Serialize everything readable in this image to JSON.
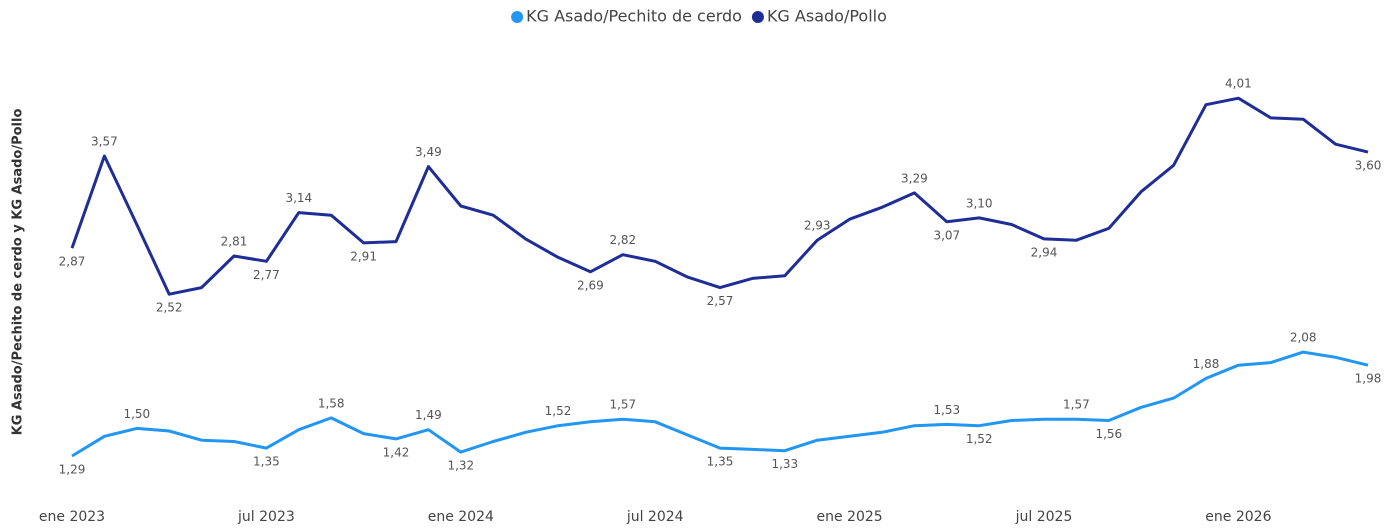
{
  "chart_data": {
    "type": "line",
    "y_axis_label": "KG Asado/Pechito de cerdo y KG Asado/Pollo",
    "x": [
      "2023-01",
      "2023-02",
      "2023-03",
      "2023-04",
      "2023-05",
      "2023-06",
      "2023-07",
      "2023-08",
      "2023-09",
      "2023-10",
      "2023-11",
      "2023-12",
      "2024-01",
      "2024-02",
      "2024-03",
      "2024-04",
      "2024-05",
      "2024-06",
      "2024-07",
      "2024-08",
      "2024-09",
      "2024-10",
      "2024-11",
      "2024-12",
      "2025-01",
      "2025-02",
      "2025-03",
      "2025-04",
      "2025-05",
      "2025-06",
      "2025-07",
      "2025-08",
      "2025-09",
      "2025-10",
      "2025-11",
      "2025-12",
      "2026-01",
      "2026-02",
      "2026-03",
      "2026-04",
      "2026-05"
    ],
    "xticks": [
      {
        "value": "2023-01",
        "label": "ene 2023"
      },
      {
        "value": "2023-07",
        "label": "jul 2023"
      },
      {
        "value": "2024-01",
        "label": "ene 2024"
      },
      {
        "value": "2024-07",
        "label": "jul 2024"
      },
      {
        "value": "2025-01",
        "label": "ene 2025"
      },
      {
        "value": "2025-07",
        "label": "jul 2025"
      },
      {
        "value": "2026-01",
        "label": "ene 2026"
      }
    ],
    "ylim": [
      1.1,
      4.3
    ],
    "legend": "top",
    "series": [
      {
        "name": "KG Asado/Pechito de cerdo",
        "color": "#2196f3",
        "values": [
          1.29,
          1.44,
          1.5,
          1.48,
          1.41,
          1.4,
          1.35,
          1.49,
          1.58,
          1.46,
          1.42,
          1.49,
          1.32,
          1.4,
          1.47,
          1.52,
          1.55,
          1.57,
          1.55,
          1.45,
          1.35,
          1.34,
          1.33,
          1.41,
          1.44,
          1.47,
          1.52,
          1.53,
          1.52,
          1.56,
          1.57,
          1.57,
          1.56,
          1.66,
          1.73,
          1.88,
          1.98,
          2.0,
          2.08,
          2.04,
          1.98
        ],
        "value_labels": [
          "1,29",
          null,
          "1,50",
          null,
          null,
          null,
          "1,35",
          null,
          "1,58",
          null,
          "1,42",
          "1,49",
          "1,32",
          null,
          null,
          "1,52",
          null,
          "1,57",
          null,
          null,
          "1,35",
          null,
          "1,33",
          null,
          null,
          null,
          null,
          "1,53",
          "1,52",
          null,
          null,
          "1,57",
          "1,56",
          null,
          null,
          "1,88",
          null,
          null,
          "2,08",
          null,
          "1,98"
        ]
      },
      {
        "name": "KG Asado/Pollo",
        "color": "#1f2d96",
        "values": [
          2.87,
          3.57,
          3.05,
          2.52,
          2.57,
          2.81,
          2.77,
          3.14,
          3.12,
          2.91,
          2.92,
          3.49,
          3.19,
          3.12,
          2.94,
          2.8,
          2.69,
          2.82,
          2.77,
          2.65,
          2.57,
          2.64,
          2.66,
          2.93,
          3.09,
          3.18,
          3.29,
          3.07,
          3.1,
          3.05,
          2.94,
          2.93,
          3.02,
          3.3,
          3.5,
          3.96,
          4.01,
          3.86,
          3.85,
          3.66,
          3.6
        ],
        "value_labels": [
          "2,87",
          "3,57",
          null,
          "2,52",
          null,
          "2,81",
          "2,77",
          "3,14",
          null,
          "2,91",
          null,
          "3,49",
          null,
          null,
          null,
          null,
          "2,69",
          "2,82",
          null,
          null,
          "2,57",
          null,
          null,
          "2,93",
          null,
          null,
          "3,29",
          "3,07",
          "3,10",
          null,
          "2,94",
          null,
          null,
          null,
          null,
          null,
          "4,01",
          null,
          null,
          null,
          "3,60"
        ]
      }
    ]
  }
}
